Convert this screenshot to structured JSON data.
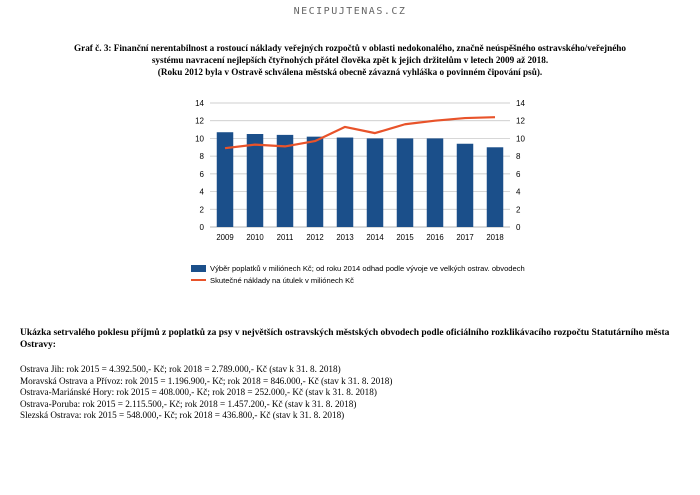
{
  "site_name": "NECIPUJTENAS.CZ",
  "caption": {
    "line1": "Graf č. 3: Finanční nerentabilnost a rostoucí náklady veřejných rozpočtů v oblasti nedokonalého, značně neúspěšného ostravského/veřejného",
    "line2": "systému navracení nejlepších čtyřnohých přátel člověka zpět k jejich držitelům v letech 2009 až 2018.",
    "line3": "(Roku 2012 byla v Ostravě schválena městská obecně závazná vyhláška o povinném čipování psů)."
  },
  "chart_data": {
    "type": "bar",
    "categories": [
      "2009",
      "2010",
      "2011",
      "2012",
      "2013",
      "2014",
      "2015",
      "2016",
      "2017",
      "2018"
    ],
    "series": [
      {
        "name": "Výběr poplatků v miliónech Kč; od roku 2014 odhad podle vývoje ve velkých ostrav. obvodech",
        "kind": "bar",
        "color": "#1b4f8a",
        "values": [
          10.7,
          10.5,
          10.4,
          10.2,
          10.1,
          10.0,
          10.0,
          10.0,
          9.4,
          9.0
        ]
      },
      {
        "name": "Skutečné náklady na útulek v miliónech Kč",
        "kind": "line",
        "color": "#e8532a",
        "values": [
          8.9,
          9.3,
          9.1,
          9.7,
          11.3,
          10.6,
          11.6,
          12.0,
          12.3,
          12.4
        ]
      }
    ],
    "ylim": [
      0,
      14
    ],
    "yticks": [
      "0",
      "2",
      "4",
      "6",
      "8",
      "10",
      "12",
      "14"
    ],
    "secondary_ylim": [
      0,
      14
    ],
    "secondary_yticks": [
      "0",
      "2",
      "4",
      "6",
      "8",
      "10",
      "12",
      "14"
    ],
    "grid": true,
    "legend_position": "bottom-left"
  },
  "section": {
    "heading": "Ukázka setrvalého poklesu příjmů z poplatků za psy v největších ostravských městských obvodech podle oficiálního rozklikávacího rozpočtu Statutárního města Ostravy:",
    "items": [
      "Ostrava Jih: rok 2015 = 4.392.500,- Kč; rok 2018 = 2.789.000,- Kč (stav k 31. 8. 2018)",
      "Moravská Ostrava a Přívoz: rok 2015 = 1.196.900,- Kč; rok 2018 = 846.000,- Kč (stav k 31. 8. 2018)",
      "Ostrava-Mariánské Hory: rok 2015 = 408.000,- Kč; rok 2018 = 252.000,- Kč (stav k 31. 8. 2018)",
      "Ostrava-Poruba: rok 2015 = 2.115.500,- Kč; rok 2018 = 1.457.200,- Kč (stav k 31. 8. 2018)",
      "Slezská Ostrava: rok 2015 = 548.000,- Kč; rok 2018 = 436.800,- Kč (stav k 31. 8. 2018)"
    ]
  }
}
